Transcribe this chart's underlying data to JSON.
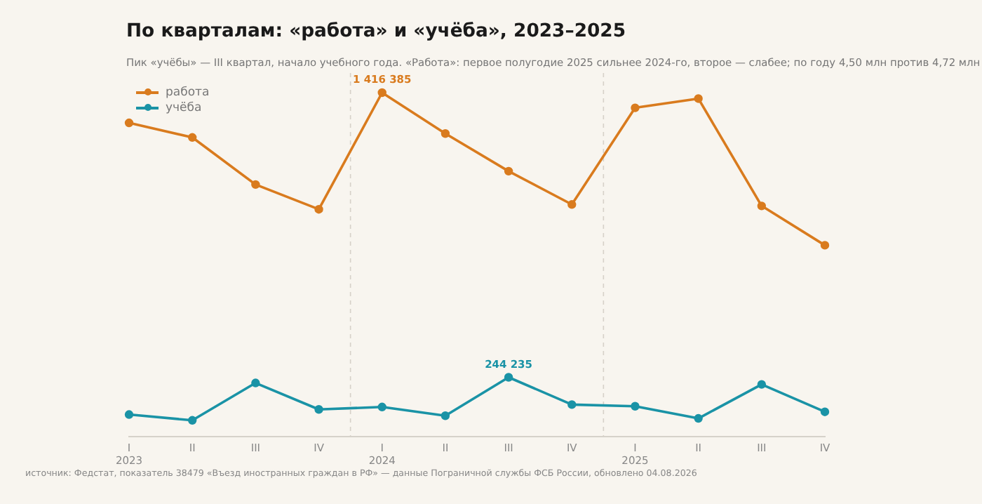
{
  "chart_data": {
    "type": "line",
    "title": "По кварталам: «работа» и «учёба», 2023–2025",
    "subtitle": "Пик «учёбы» — III квартал, начало учебного года. «Работа»: первое полугодие 2025 сильнее 2024-го, второе — слабее; по году 4,50 млн против 4,72 млн",
    "annotations": [
      "источник: Федстат, показатель 38479 «Въезд иностранных граждан в РФ» — данные Пограничной службы ФСБ России, обновлено 04.08.2026"
    ],
    "categories": [
      "I\n2023",
      "II",
      "III",
      "IV",
      "I\n2024",
      "II",
      "III",
      "IV",
      "I\n2025",
      "II",
      "III",
      "IV"
    ],
    "series": [
      {
        "name": "работа",
        "color": "#d97b1e",
        "values": [
          1292000,
          1232000,
          1038000,
          936000,
          1416385,
          1248000,
          1093000,
          956000,
          1354000,
          1392000,
          950000,
          788000
        ],
        "value_labels": [
          null,
          null,
          null,
          null,
          "1 416 385",
          null,
          null,
          null,
          null,
          null,
          null,
          null
        ]
      },
      {
        "name": "учёба",
        "color": "#1a93a6",
        "values": [
          91000,
          67000,
          221000,
          112000,
          122000,
          86000,
          244235,
          132000,
          125000,
          75000,
          215000,
          102000
        ],
        "value_labels": [
          null,
          null,
          null,
          null,
          null,
          null,
          "244 235",
          null,
          null,
          null,
          null,
          null
        ]
      }
    ],
    "legend": "top left",
    "marker": "circle",
    "line_style": "solid",
    "grid": false
  }
}
